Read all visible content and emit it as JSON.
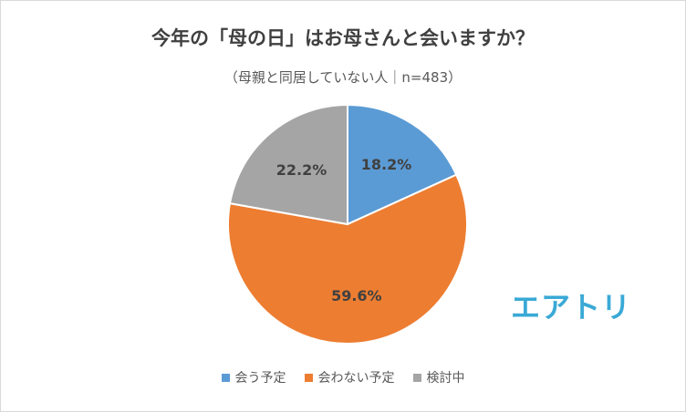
{
  "chart_data": {
    "type": "pie",
    "title": "今年の「母の日」はお母さんと会いますか？",
    "subtitle": "（母親と同居していない人｜n=483）",
    "categories": [
      "会う予定",
      "会わない予定",
      "検討中"
    ],
    "values": [
      18.2,
      59.6,
      22.2
    ],
    "labels": [
      "18.2%",
      "59.6%",
      "22.2%"
    ],
    "colors": [
      "#5b9bd5",
      "#ed7d31",
      "#a5a5a5"
    ],
    "legend_position": "bottom"
  },
  "logo_text": "エアトリ"
}
